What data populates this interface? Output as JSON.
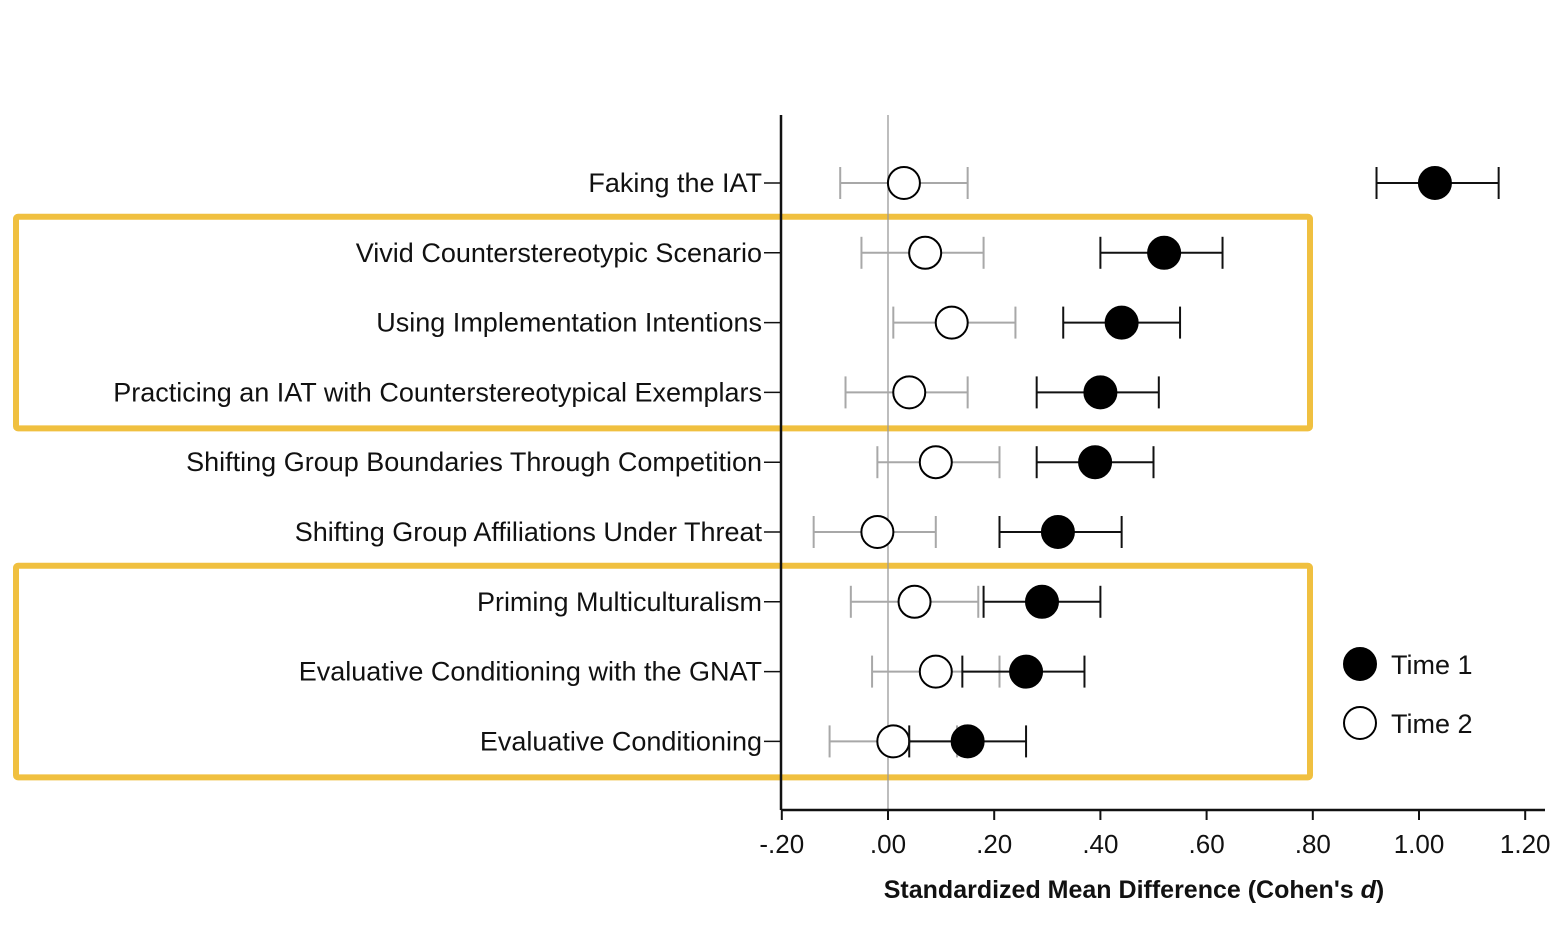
{
  "chart_data": {
    "type": "scatter",
    "xlabel": "Standardized Mean Difference (Cohen's ",
    "xlabel_italic": "d",
    "xlabel_close": ")",
    "xlim": [
      -0.2,
      1.22
    ],
    "x_ticks": [
      -0.2,
      0.0,
      0.2,
      0.4,
      0.6,
      0.8,
      1.0,
      1.2
    ],
    "x_tick_labels": [
      "-.20",
      ".00",
      ".20",
      ".40",
      ".60",
      ".80",
      "1.00",
      "1.20"
    ],
    "reference_line": 0.0,
    "grid": false,
    "legend_position": "right",
    "categories": [
      "Faking the IAT",
      "Vivid Counterstereotypic Scenario",
      "Using Implementation Intentions",
      "Practicing an IAT with Counterstereotypical Exemplars",
      "Shifting Group Boundaries Through Competition",
      "Shifting Group Affiliations Under Threat",
      "Priming Multiculturalism",
      "Evaluative Conditioning with the GNAT",
      "Evaluative Conditioning"
    ],
    "series": [
      {
        "name": "Time 1",
        "fill": "#000000",
        "error_color": "#111111",
        "values": [
          1.03,
          0.52,
          0.44,
          0.4,
          0.39,
          0.32,
          0.29,
          0.26,
          0.15
        ],
        "ci_low": [
          0.92,
          0.4,
          0.33,
          0.28,
          0.28,
          0.21,
          0.18,
          0.14,
          0.04
        ],
        "ci_high": [
          1.15,
          0.63,
          0.55,
          0.51,
          0.5,
          0.44,
          0.4,
          0.37,
          0.26
        ]
      },
      {
        "name": "Time 2",
        "fill": "#ffffff",
        "error_color": "#a8a8a8",
        "values": [
          0.03,
          0.07,
          0.12,
          0.04,
          0.09,
          -0.02,
          0.05,
          0.09,
          0.01
        ],
        "ci_low": [
          -0.09,
          -0.05,
          0.01,
          -0.08,
          -0.02,
          -0.14,
          -0.07,
          -0.03,
          -0.11
        ],
        "ci_high": [
          0.15,
          0.18,
          0.24,
          0.15,
          0.21,
          0.09,
          0.17,
          0.21,
          0.13
        ]
      }
    ],
    "highlight_boxes": [
      {
        "rows": [
          1,
          3
        ],
        "color": "#f0c040"
      },
      {
        "rows": [
          6,
          8
        ],
        "color": "#f0c040"
      }
    ]
  }
}
